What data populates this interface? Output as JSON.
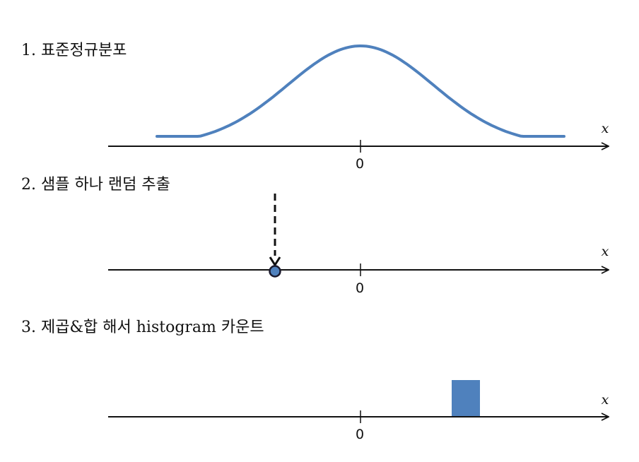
{
  "steps": [
    {
      "title": "1. 표준정규분포",
      "axis_label": "x",
      "tick_label": "0"
    },
    {
      "title": "2. 샘플 하나 랜덤 추출",
      "axis_label": "x",
      "tick_label": "0"
    },
    {
      "title": "3. 제곱&합 해서 histogram 카운트",
      "axis_label": "x",
      "tick_label": "0"
    }
  ],
  "chart_data": [
    {
      "type": "line",
      "title": "1. 표준정규분포",
      "xlabel": "x",
      "curve": "standard-normal-density",
      "xlim": [
        -3.5,
        3.5
      ],
      "x_ticks": [
        "0"
      ]
    },
    {
      "type": "scatter",
      "title": "2. 샘플 하나 랜덤 추출",
      "xlabel": "x",
      "points": [
        {
          "x": -1.1
        }
      ],
      "x_ticks": [
        "0"
      ]
    },
    {
      "type": "bar",
      "title": "3. 제곱&합 해서 histogram 카운트",
      "xlabel": "x",
      "bars": [
        {
          "x_center": 1.2,
          "count": 1
        }
      ],
      "x_ticks": [
        "0"
      ]
    }
  ],
  "colors": {
    "accent": "#4f81bd",
    "ink": "#111111",
    "marker_stroke": "#1a1a2e"
  }
}
